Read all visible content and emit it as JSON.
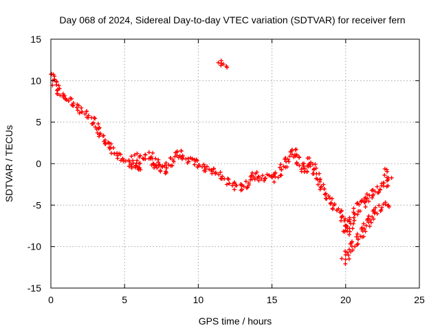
{
  "chart_data": {
    "type": "scatter",
    "title": "Day 068 of 2024, Sidereal Day-to-day VTEC variation (SDTVAR) for receiver fern",
    "xlabel": "GPS time / hours",
    "ylabel": "SDTVAR / TECUs",
    "xlim": [
      0,
      25
    ],
    "ylim": [
      -15,
      15
    ],
    "xticks": [
      0,
      5,
      10,
      15,
      20,
      25
    ],
    "yticks": [
      -15,
      -10,
      -5,
      0,
      5,
      10,
      15
    ],
    "grid": true,
    "marker": "plus",
    "color": "#ff0000",
    "series": [
      {
        "name": "main",
        "points": [
          [
            0.05,
            10.8
          ],
          [
            0.2,
            10.5
          ],
          [
            0.3,
            9.5
          ],
          [
            0.5,
            8.8
          ],
          [
            0.7,
            8.2
          ],
          [
            0.9,
            7.8
          ],
          [
            1.3,
            7.6
          ],
          [
            1.6,
            7.2
          ],
          [
            1.9,
            6.6
          ],
          [
            2.1,
            6.2
          ],
          [
            2.4,
            6.0
          ],
          [
            2.7,
            5.6
          ],
          [
            2.9,
            5.2
          ],
          [
            3.1,
            4.4
          ],
          [
            3.3,
            3.8
          ],
          [
            3.5,
            3.2
          ],
          [
            3.8,
            2.6
          ],
          [
            4.1,
            1.8
          ],
          [
            4.3,
            1.2
          ],
          [
            4.7,
            0.8
          ],
          [
            5.1,
            0.3
          ],
          [
            5.5,
            -0.2
          ],
          [
            5.8,
            -0.5
          ],
          [
            6.0,
            -0.9
          ],
          [
            5.7,
            0.8
          ],
          [
            6.5,
            0.8
          ],
          [
            6.8,
            1.2
          ],
          [
            7.0,
            -0.5
          ],
          [
            7.3,
            0.2
          ],
          [
            7.6,
            -1.0
          ],
          [
            7.9,
            -0.4
          ],
          [
            8.2,
            0.4
          ],
          [
            8.5,
            0.9
          ],
          [
            8.8,
            1.4
          ],
          [
            9.0,
            0.8
          ],
          [
            9.3,
            0.4
          ],
          [
            9.6,
            0.6
          ],
          [
            9.9,
            0.0
          ],
          [
            10.2,
            -0.3
          ],
          [
            10.5,
            -0.6
          ],
          [
            10.8,
            -0.8
          ],
          [
            11.1,
            -1.0
          ],
          [
            11.4,
            -1.3
          ],
          [
            11.7,
            -1.6
          ],
          [
            11.9,
            -2.0
          ],
          [
            12.1,
            -2.4
          ],
          [
            12.4,
            -2.7
          ],
          [
            12.7,
            -2.6
          ],
          [
            13.0,
            -3.0
          ],
          [
            13.3,
            -2.4
          ],
          [
            13.6,
            -2.0
          ],
          [
            13.9,
            -1.2
          ],
          [
            14.2,
            -1.8
          ],
          [
            14.5,
            -1.6
          ],
          [
            14.8,
            -1.4
          ],
          [
            15.1,
            -1.8
          ],
          [
            15.4,
            -1.3
          ],
          [
            15.7,
            -0.6
          ],
          [
            16.0,
            0.4
          ],
          [
            16.3,
            1.0
          ],
          [
            16.6,
            1.6
          ],
          [
            16.8,
            0.2
          ],
          [
            17.0,
            -0.4
          ],
          [
            17.2,
            -1.0
          ],
          [
            17.5,
            0.4
          ],
          [
            17.7,
            0.0
          ],
          [
            17.9,
            -0.8
          ],
          [
            18.1,
            -1.8
          ],
          [
            18.3,
            -2.6
          ],
          [
            18.5,
            -3.2
          ],
          [
            18.8,
            -4.0
          ],
          [
            19.1,
            -5.0
          ],
          [
            19.4,
            -5.6
          ],
          [
            19.7,
            -6.0
          ],
          [
            19.9,
            -6.8
          ],
          [
            20.0,
            -7.8
          ],
          [
            20.1,
            -8.4
          ],
          [
            20.3,
            -7.4
          ],
          [
            20.5,
            -6.6
          ],
          [
            20.7,
            -5.8
          ],
          [
            20.9,
            -5.0
          ],
          [
            21.1,
            -4.4
          ],
          [
            21.3,
            -4.8
          ],
          [
            21.6,
            -3.8
          ],
          [
            21.9,
            -3.6
          ],
          [
            22.2,
            -3.0
          ],
          [
            22.5,
            -2.8
          ],
          [
            22.8,
            -2.4
          ],
          [
            22.9,
            -1.8
          ],
          [
            22.8,
            -0.8
          ],
          [
            20.0,
            -11.0
          ],
          [
            20.3,
            -10.2
          ],
          [
            20.6,
            -9.6
          ],
          [
            20.9,
            -9.0
          ],
          [
            21.2,
            -8.0
          ],
          [
            21.5,
            -7.2
          ],
          [
            21.8,
            -6.4
          ],
          [
            22.1,
            -5.6
          ],
          [
            22.4,
            -5.2
          ],
          [
            22.7,
            -4.9
          ],
          [
            22.9,
            -4.8
          ],
          [
            20.0,
            -11.4
          ],
          [
            19.9,
            -11.8
          ],
          [
            11.4,
            12.0
          ],
          [
            11.6,
            12.0
          ],
          [
            11.8,
            12.0
          ],
          [
            12.0,
            12.0
          ]
        ]
      }
    ]
  }
}
